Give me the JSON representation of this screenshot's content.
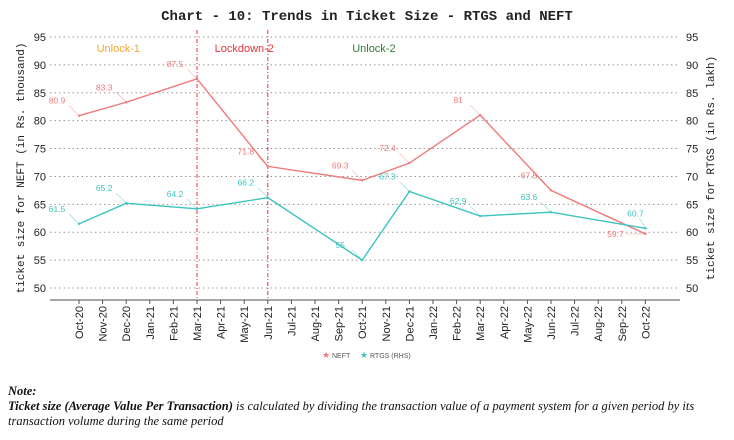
{
  "chart_data": {
    "type": "line",
    "title": "Chart - 10: Trends in Ticket Size - RTGS and NEFT",
    "ylabel": "ticket size for NEFT (in Rs. thousand)",
    "y2label": "ticket size for RTGS (in Rs. lakh)",
    "xlabel": "",
    "ylim": [
      50,
      95
    ],
    "y2lim": [
      50,
      95
    ],
    "yticks": [
      50,
      55,
      60,
      65,
      70,
      75,
      80,
      85,
      90,
      95
    ],
    "grid": "horizontal dotted",
    "categories": [
      "Oct-20",
      "Nov-20",
      "Dec-20",
      "Jan-21",
      "Feb-21",
      "Mar-21",
      "Apr-21",
      "May-21",
      "Jun-21",
      "Jul-21",
      "Aug-21",
      "Sep-21",
      "Oct-21",
      "Nov-21",
      "Dec-21",
      "Jan-22",
      "Feb-22",
      "Mar-22",
      "Apr-22",
      "May-22",
      "Jun-22",
      "Jul-22",
      "Aug-22",
      "Sep-22",
      "Oct-22"
    ],
    "series": [
      {
        "name": "NEFT",
        "color": "#f07a7a",
        "axis": "left",
        "points": [
          [
            "Oct-20",
            80.9
          ],
          [
            "Dec-20",
            83.3
          ],
          [
            "Mar-21",
            87.5
          ],
          [
            "Jun-21",
            71.8
          ],
          [
            "Oct-21",
            69.3
          ],
          [
            "Dec-21",
            72.4
          ],
          [
            "Mar-22",
            81
          ],
          [
            "Jun-22",
            67.5
          ],
          [
            "Oct-22",
            59.7
          ]
        ],
        "labels": [
          "80.9",
          "83.3",
          "87.5",
          "71.8",
          "69.3",
          "72.4",
          "81",
          "67.5",
          "59.7"
        ]
      },
      {
        "name": "RTGS (RHS)",
        "color": "#3cc4c0",
        "axis": "right",
        "points": [
          [
            "Oct-20",
            61.5
          ],
          [
            "Dec-20",
            65.2
          ],
          [
            "Mar-21",
            64.2
          ],
          [
            "Jun-21",
            66.2
          ],
          [
            "Oct-21",
            55
          ],
          [
            "Dec-21",
            67.3
          ],
          [
            "Mar-22",
            62.9
          ],
          [
            "Jun-22",
            63.6
          ],
          [
            "Oct-22",
            60.7
          ]
        ],
        "labels": [
          "61.5",
          "65.2",
          "64.2",
          "66.2",
          "55",
          "67.3",
          "62.9",
          "63.6",
          "60.7"
        ]
      }
    ],
    "vlines": [
      "Mar-21",
      "Jun-21"
    ],
    "annotations": [
      {
        "text": "Unlock-1",
        "color": "#f5a623",
        "at": "Nov-20"
      },
      {
        "text": "Lockdown-2",
        "color": "#e8333a",
        "at": "Apr-21"
      },
      {
        "text": "Unlock-2",
        "color": "#2e7d32",
        "at": "Oct-21"
      }
    ],
    "legend": "bottom-center"
  },
  "note": {
    "heading": "Note:",
    "bold_text": "Ticket size (Average Value Per Transaction)",
    "text": " is calculated by dividing the transaction value of a payment system for a given period by its transaction volume during the same period"
  }
}
